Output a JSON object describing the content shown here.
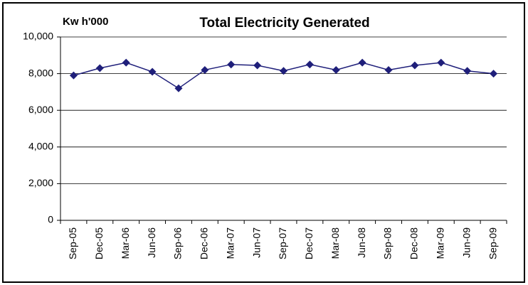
{
  "chart_data": {
    "type": "line",
    "title": "Total Electricity Generated",
    "y_label": "Kw h'000",
    "categories": [
      "Sep-05",
      "Dec-05",
      "Mar-06",
      "Jun-06",
      "Sep-06",
      "Dec-06",
      "Mar-07",
      "Jun-07",
      "Sep-07",
      "Dec-07",
      "Mar-08",
      "Jun-08",
      "Sep-08",
      "Dec-08",
      "Mar-09",
      "Jun-09",
      "Sep-09"
    ],
    "series": [
      {
        "color": "#1f1f7a",
        "values": [
          7900,
          8300,
          8600,
          8100,
          7200,
          8200,
          8500,
          8450,
          8150,
          8500,
          8200,
          8600,
          8200,
          8450,
          8600,
          8150,
          8000
        ]
      }
    ],
    "ylim": [
      0,
      10000
    ],
    "yticks": [
      0,
      {
        "value": 2000,
        "label": "2,000"
      },
      {
        "value": 4000,
        "label": "4,000"
      },
      {
        "value": 6000,
        "label": "6,000"
      },
      {
        "value": 8000,
        "label": "8,000"
      },
      {
        "value": 10000,
        "label": "10,000"
      }
    ],
    "grid": true
  }
}
